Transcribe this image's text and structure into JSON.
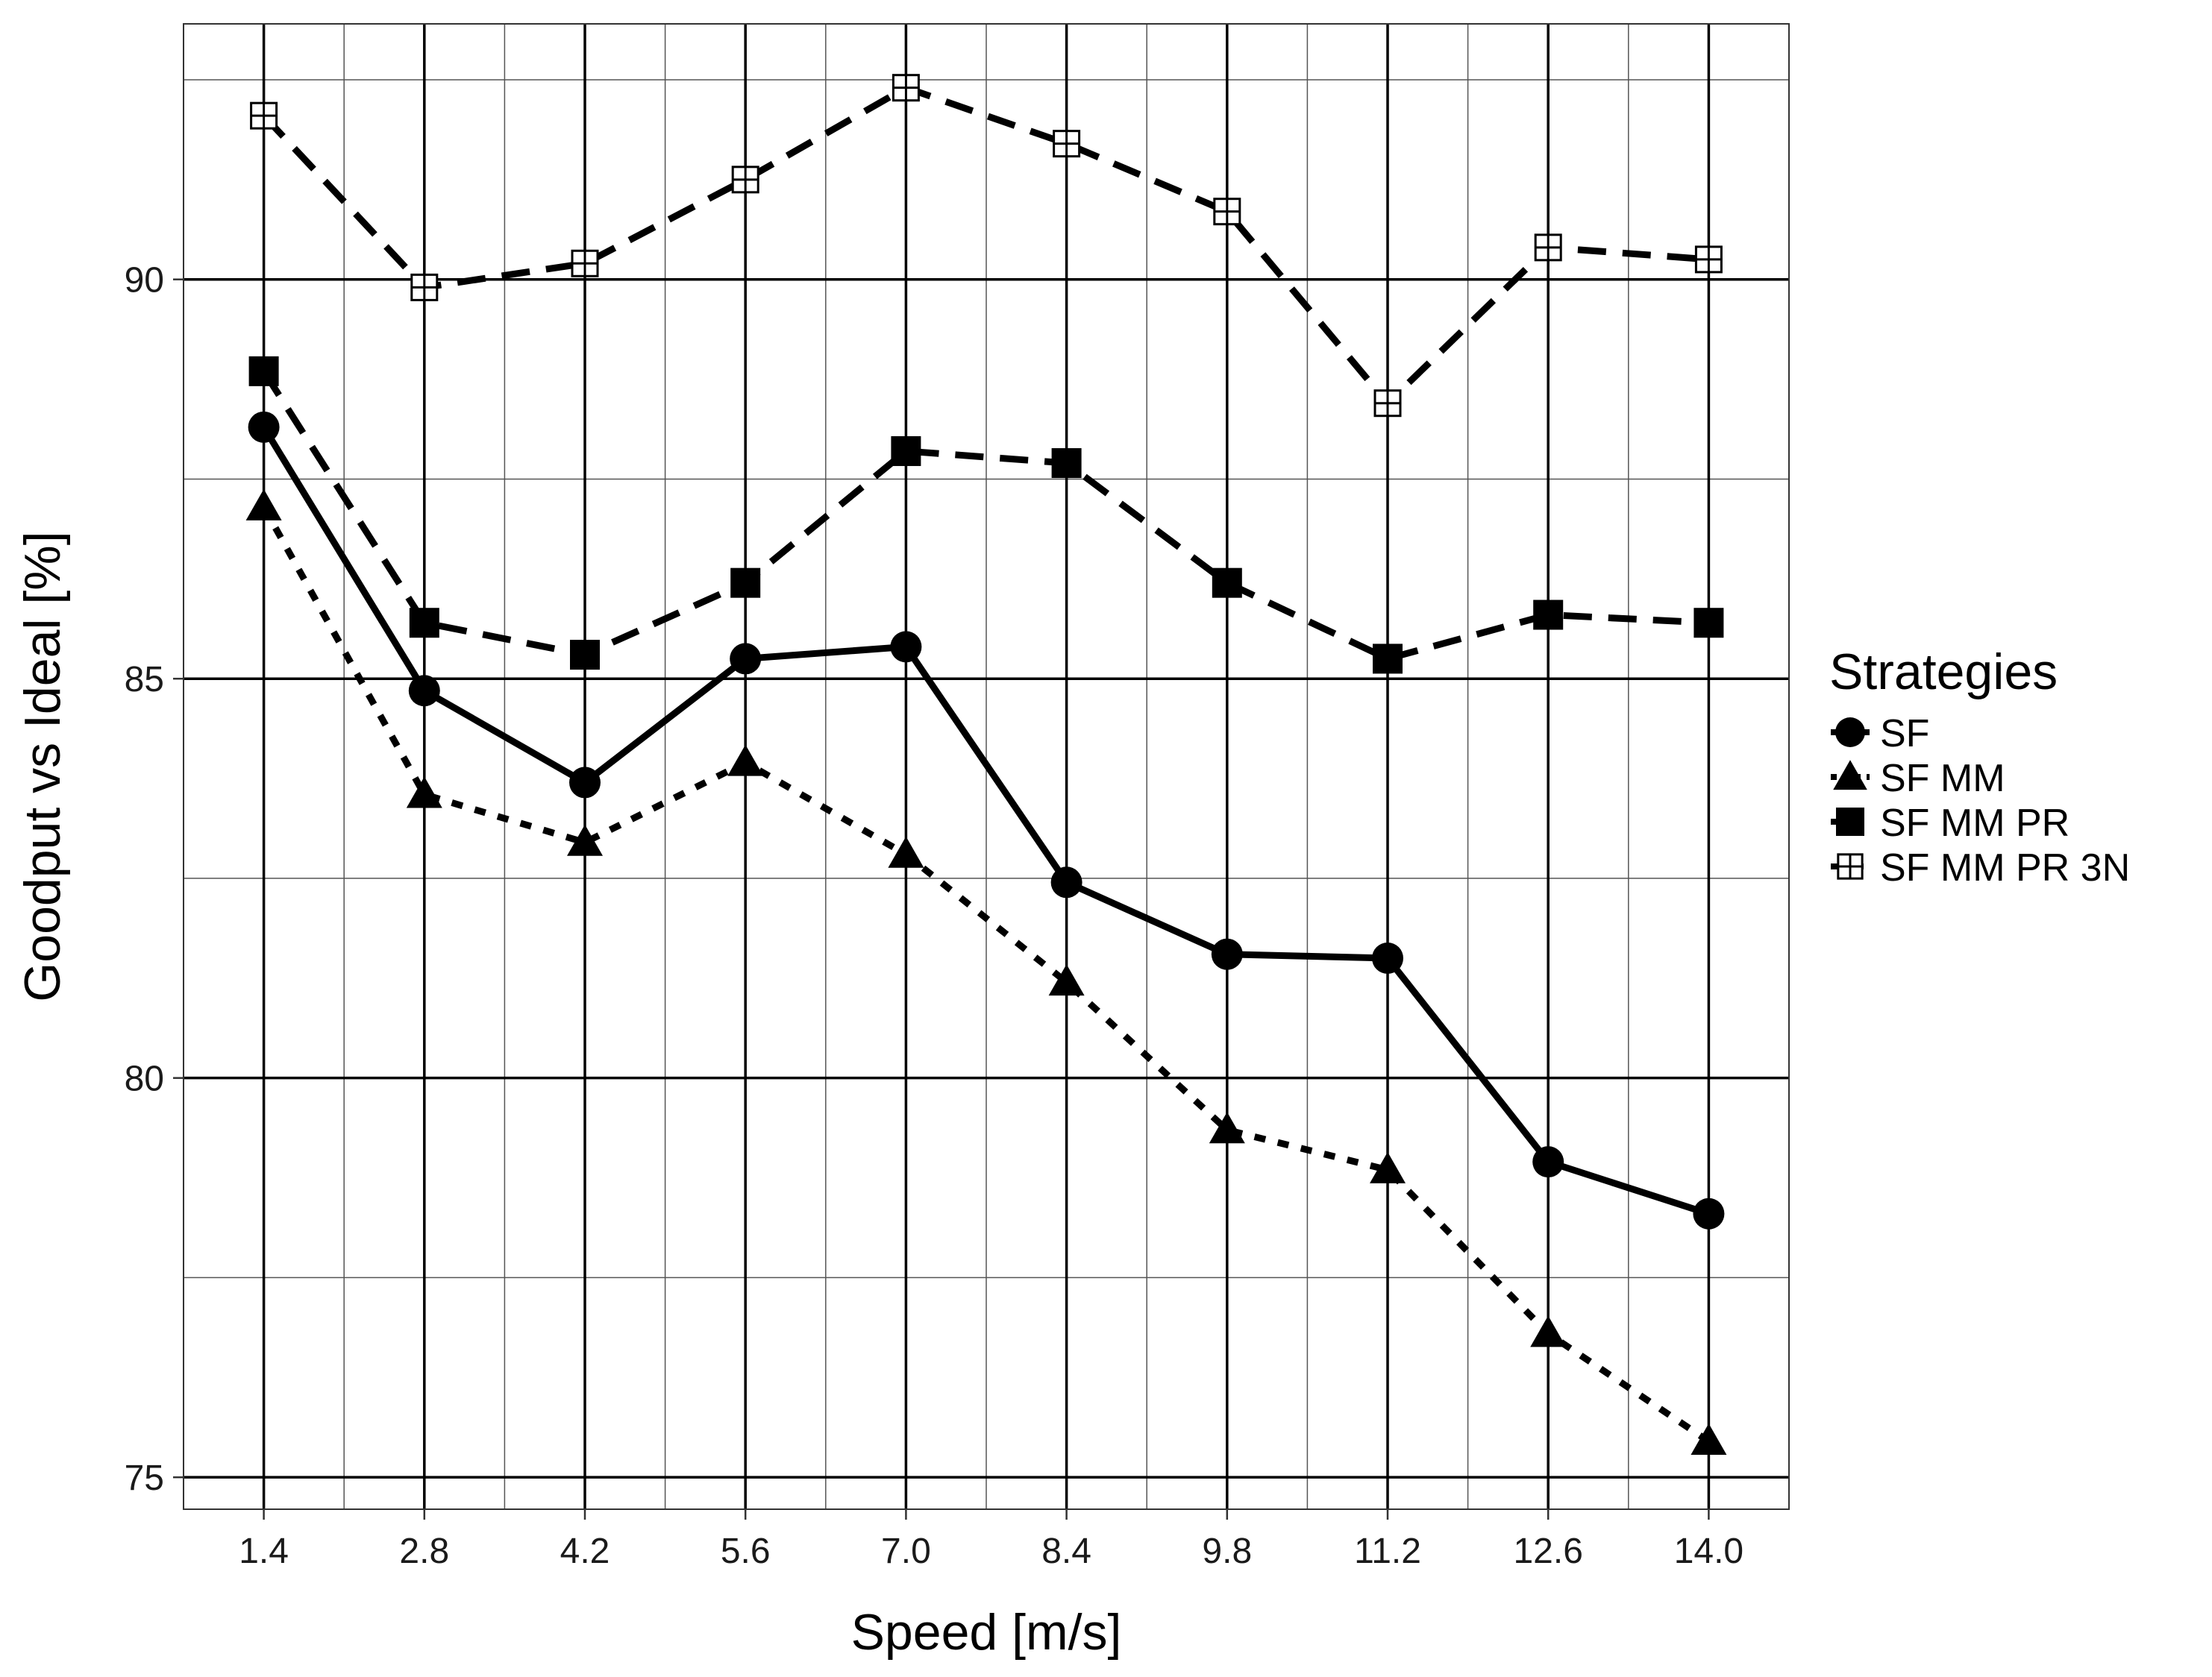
{
  "chart_data": {
    "type": "line",
    "title": "",
    "xlabel": "Speed [m/s]",
    "ylabel": "Goodput vs Ideal [%]",
    "x": [
      1.4,
      2.8,
      4.2,
      5.6,
      7.0,
      8.4,
      9.8,
      11.2,
      12.6,
      14.0
    ],
    "x_tick_labels": [
      "1.4",
      "2.8",
      "4.2",
      "5.6",
      "7.0",
      "8.4",
      "9.8",
      "11.2",
      "12.6",
      "14.0"
    ],
    "y_ticks": [
      75,
      80,
      85,
      90
    ],
    "y_tick_labels": [
      "75",
      "80",
      "85",
      "90"
    ],
    "y_minor_ticks": [
      77.5,
      82.5,
      87.5,
      92.5
    ],
    "xlim": [
      0.7,
      14.7
    ],
    "ylim": [
      74.6,
      93.2
    ],
    "grid": true,
    "legend": {
      "title": "Strategies",
      "position": "right"
    },
    "series": [
      {
        "name": "SF",
        "marker": "circle",
        "line": "solid",
        "values": [
          88.15,
          84.85,
          83.7,
          85.25,
          85.4,
          82.45,
          81.55,
          81.5,
          78.95,
          78.3
        ]
      },
      {
        "name": "SF MM",
        "marker": "triangle",
        "line": "dotted",
        "values": [
          87.15,
          83.55,
          82.95,
          83.95,
          82.8,
          81.2,
          79.35,
          78.85,
          76.8,
          75.45
        ]
      },
      {
        "name": "SF MM PR",
        "marker": "square",
        "line": "dashed",
        "values": [
          88.85,
          85.7,
          85.3,
          86.2,
          87.85,
          87.7,
          86.2,
          85.25,
          85.8,
          85.7
        ]
      },
      {
        "name": "SF MM PR 3N",
        "marker": "square-cross",
        "line": "dashed",
        "values": [
          92.05,
          89.9,
          90.2,
          91.25,
          92.4,
          91.7,
          90.85,
          88.45,
          90.4,
          90.25
        ]
      }
    ]
  }
}
